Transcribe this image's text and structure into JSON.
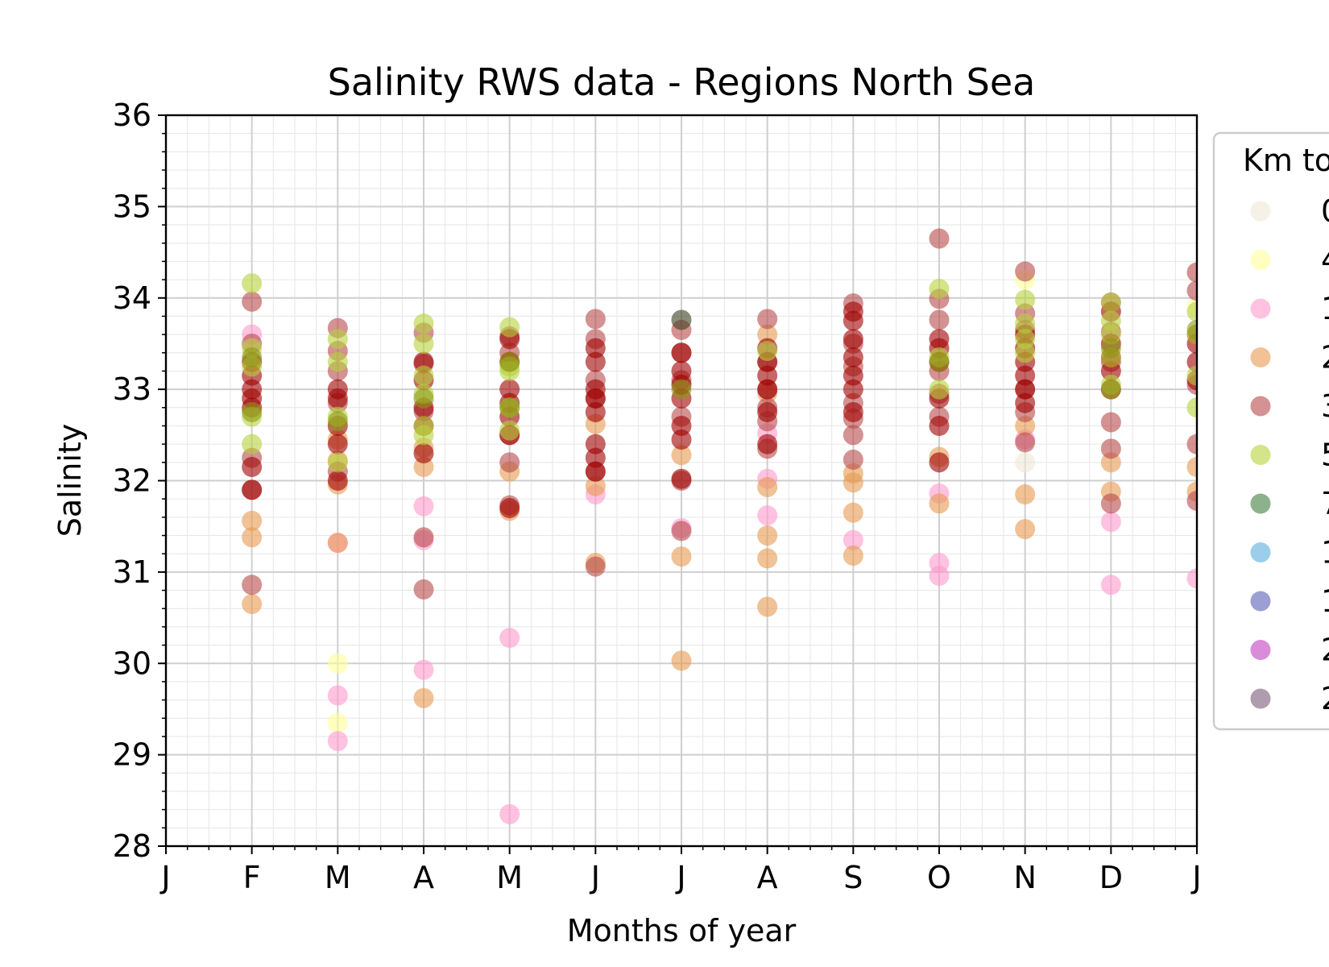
{
  "chart_data": {
    "type": "scatter",
    "title": "Salinity RWS data - Regions North Sea",
    "xlabel": "Months of year",
    "ylabel": "Salinity",
    "ylim": [
      28,
      36
    ],
    "yticks": [
      28,
      29,
      30,
      31,
      32,
      33,
      34,
      35,
      36
    ],
    "xlim": [
      0,
      12
    ],
    "xtick_labels": [
      "J",
      "F",
      "M",
      "A",
      "M",
      "J",
      "J",
      "A",
      "S",
      "O",
      "N",
      "D",
      "J"
    ],
    "grid": true,
    "legend": {
      "placement": "right, partially cut off",
      "title": "Km to",
      "entries": [
        {
          "label": "0",
          "color": "#eee8d5"
        },
        {
          "label": "4",
          "color": "#ffff99"
        },
        {
          "label": "1",
          "color": "#ff99cc"
        },
        {
          "label": "2",
          "color": "#e69a50"
        },
        {
          "label": "3",
          "color": "#b84a4a"
        },
        {
          "label": "5",
          "color": "#b5d23b"
        },
        {
          "label": "7",
          "color": "#3f7f3f"
        },
        {
          "label": "1",
          "color": "#5aaee0"
        },
        {
          "label": "1",
          "color": "#5a5fb5"
        },
        {
          "label": "2",
          "color": "#c040c0"
        },
        {
          "label": "2",
          "color": "#7a5a78"
        }
      ]
    },
    "series": [
      {
        "color": "#eee8d5",
        "points": [
          [
            10,
            32.2
          ]
        ]
      },
      {
        "color": "#ffff99",
        "points": [
          [
            2,
            30.0
          ],
          [
            2,
            29.35
          ],
          [
            10,
            34.2
          ],
          [
            12,
            33.9
          ]
        ]
      },
      {
        "color": "#ff99cc",
        "points": [
          [
            1,
            33.6
          ],
          [
            2,
            31.32
          ],
          [
            2,
            29.65
          ],
          [
            2,
            29.15
          ],
          [
            3,
            31.72
          ],
          [
            3,
            31.35
          ],
          [
            3,
            29.93
          ],
          [
            4,
            30.28
          ],
          [
            4,
            28.35
          ],
          [
            5,
            31.85
          ],
          [
            6,
            31.48
          ],
          [
            7,
            32.52
          ],
          [
            7,
            32.02
          ],
          [
            7,
            31.62
          ],
          [
            8,
            31.35
          ],
          [
            9,
            31.86
          ],
          [
            9,
            31.1
          ],
          [
            9,
            30.96
          ],
          [
            10,
            32.45
          ],
          [
            11,
            31.55
          ],
          [
            11,
            30.86
          ],
          [
            12,
            30.93
          ]
        ]
      },
      {
        "color": "#e69a50",
        "points": [
          [
            1,
            31.56
          ],
          [
            1,
            31.38
          ],
          [
            1,
            30.65
          ],
          [
            2,
            32.45
          ],
          [
            2,
            32.22
          ],
          [
            2,
            31.96
          ],
          [
            2,
            31.32
          ],
          [
            3,
            32.36
          ],
          [
            3,
            32.15
          ],
          [
            3,
            29.62
          ],
          [
            4,
            31.67
          ],
          [
            4,
            32.1
          ],
          [
            5,
            32.62
          ],
          [
            5,
            31.94
          ],
          [
            5,
            31.1
          ],
          [
            6,
            32.28
          ],
          [
            6,
            31.17
          ],
          [
            6,
            30.03
          ],
          [
            7,
            33.6
          ],
          [
            7,
            32.96
          ],
          [
            7,
            31.93
          ],
          [
            7,
            31.4
          ],
          [
            7,
            31.15
          ],
          [
            7,
            30.62
          ],
          [
            8,
            32.08
          ],
          [
            8,
            31.98
          ],
          [
            8,
            31.65
          ],
          [
            8,
            31.18
          ],
          [
            9,
            32.26
          ],
          [
            9,
            31.75
          ],
          [
            10,
            32.6
          ],
          [
            10,
            31.85
          ],
          [
            10,
            31.47
          ],
          [
            11,
            32.2
          ],
          [
            11,
            31.88
          ],
          [
            12,
            32.15
          ],
          [
            12,
            31.88
          ]
        ]
      },
      {
        "color": "#b84a4a",
        "points": [
          [
            1,
            33.96
          ],
          [
            1,
            33.5
          ],
          [
            1,
            32.25
          ],
          [
            1,
            31.9
          ],
          [
            1,
            30.86
          ],
          [
            2,
            33.67
          ],
          [
            2,
            33.42
          ],
          [
            2,
            33.2
          ],
          [
            2,
            32.85
          ],
          [
            2,
            32.1
          ],
          [
            3,
            33.62
          ],
          [
            3,
            33.28
          ],
          [
            3,
            32.76
          ],
          [
            3,
            31.38
          ],
          [
            3,
            30.81
          ],
          [
            4,
            33.58
          ],
          [
            4,
            33.4
          ],
          [
            4,
            32.5
          ],
          [
            4,
            32.2
          ],
          [
            4,
            31.73
          ],
          [
            5,
            33.77
          ],
          [
            5,
            33.55
          ],
          [
            5,
            33.1
          ],
          [
            5,
            32.9
          ],
          [
            5,
            32.1
          ],
          [
            5,
            31.06
          ],
          [
            6,
            33.65
          ],
          [
            6,
            33.4
          ],
          [
            6,
            33.1
          ],
          [
            6,
            32.7
          ],
          [
            6,
            32.0
          ],
          [
            6,
            31.45
          ],
          [
            7,
            33.77
          ],
          [
            7,
            33.3
          ],
          [
            7,
            33.0
          ],
          [
            7,
            32.8
          ],
          [
            7,
            32.65
          ],
          [
            7,
            32.35
          ],
          [
            8,
            33.94
          ],
          [
            8,
            33.5
          ],
          [
            8,
            33.25
          ],
          [
            8,
            32.85
          ],
          [
            8,
            32.5
          ],
          [
            8,
            32.23
          ],
          [
            8,
            32.68
          ],
          [
            9,
            34.65
          ],
          [
            9,
            33.99
          ],
          [
            9,
            33.76
          ],
          [
            9,
            33.2
          ],
          [
            9,
            32.95
          ],
          [
            9,
            32.7
          ],
          [
            10,
            34.29
          ],
          [
            10,
            33.83
          ],
          [
            10,
            33.65
          ],
          [
            10,
            33.0
          ],
          [
            10,
            32.75
          ],
          [
            10,
            32.42
          ],
          [
            11,
            33.95
          ],
          [
            11,
            33.63
          ],
          [
            11,
            33.3
          ],
          [
            11,
            32.64
          ],
          [
            11,
            32.35
          ],
          [
            11,
            31.75
          ],
          [
            12,
            34.28
          ],
          [
            12,
            34.08
          ],
          [
            12,
            33.6
          ],
          [
            12,
            33.05
          ],
          [
            12,
            32.4
          ],
          [
            12,
            31.78
          ]
        ]
      },
      {
        "color": "#a00000",
        "points": [
          [
            1,
            33.3
          ],
          [
            1,
            33.15
          ],
          [
            1,
            33.0
          ],
          [
            1,
            32.9
          ],
          [
            1,
            32.8
          ],
          [
            1,
            32.15
          ],
          [
            1,
            31.9
          ],
          [
            2,
            33.0
          ],
          [
            2,
            32.9
          ],
          [
            2,
            32.6
          ],
          [
            2,
            32.4
          ],
          [
            2,
            32.0
          ],
          [
            3,
            33.3
          ],
          [
            3,
            33.1
          ],
          [
            3,
            32.8
          ],
          [
            3,
            32.6
          ],
          [
            3,
            32.3
          ],
          [
            4,
            33.55
          ],
          [
            4,
            33.3
          ],
          [
            4,
            33.0
          ],
          [
            4,
            32.85
          ],
          [
            4,
            32.7
          ],
          [
            4,
            32.5
          ],
          [
            4,
            31.7
          ],
          [
            5,
            33.45
          ],
          [
            5,
            33.3
          ],
          [
            5,
            33.0
          ],
          [
            5,
            32.9
          ],
          [
            5,
            32.75
          ],
          [
            5,
            32.4
          ],
          [
            5,
            32.25
          ],
          [
            5,
            32.1
          ],
          [
            6,
            33.4
          ],
          [
            6,
            33.2
          ],
          [
            6,
            33.05
          ],
          [
            6,
            32.9
          ],
          [
            6,
            32.6
          ],
          [
            6,
            32.45
          ],
          [
            6,
            32.02
          ],
          [
            7,
            33.45
          ],
          [
            7,
            33.3
          ],
          [
            7,
            33.15
          ],
          [
            7,
            33.0
          ],
          [
            7,
            32.75
          ],
          [
            7,
            32.4
          ],
          [
            8,
            33.85
          ],
          [
            8,
            33.75
          ],
          [
            8,
            33.55
          ],
          [
            8,
            33.35
          ],
          [
            8,
            33.15
          ],
          [
            8,
            33.0
          ],
          [
            8,
            32.75
          ],
          [
            9,
            33.55
          ],
          [
            9,
            33.45
          ],
          [
            9,
            33.3
          ],
          [
            9,
            32.9
          ],
          [
            9,
            32.6
          ],
          [
            9,
            32.2
          ],
          [
            10,
            33.6
          ],
          [
            10,
            33.45
          ],
          [
            10,
            33.3
          ],
          [
            10,
            33.15
          ],
          [
            10,
            33.0
          ],
          [
            10,
            32.85
          ],
          [
            11,
            33.85
          ],
          [
            11,
            33.5
          ],
          [
            11,
            33.35
          ],
          [
            11,
            33.2
          ],
          [
            11,
            33.0
          ],
          [
            12,
            33.5
          ],
          [
            12,
            33.3
          ],
          [
            12,
            33.1
          ]
        ]
      },
      {
        "color": "#b5d23b",
        "points": [
          [
            1,
            34.16
          ],
          [
            1,
            33.45
          ],
          [
            1,
            33.25
          ],
          [
            1,
            32.7
          ],
          [
            1,
            32.4
          ],
          [
            2,
            33.55
          ],
          [
            2,
            33.3
          ],
          [
            2,
            32.7
          ],
          [
            2,
            32.2
          ],
          [
            3,
            33.72
          ],
          [
            3,
            33.5
          ],
          [
            3,
            33.15
          ],
          [
            3,
            32.95
          ],
          [
            3,
            32.6
          ],
          [
            3,
            32.5
          ],
          [
            4,
            33.68
          ],
          [
            4,
            33.25
          ],
          [
            4,
            33.2
          ],
          [
            4,
            32.8
          ],
          [
            4,
            32.55
          ],
          [
            7,
            33.42
          ],
          [
            9,
            34.1
          ],
          [
            9,
            33.35
          ],
          [
            9,
            33.0
          ],
          [
            10,
            33.98
          ],
          [
            10,
            33.72
          ],
          [
            10,
            33.55
          ],
          [
            10,
            33.4
          ],
          [
            11,
            33.95
          ],
          [
            11,
            33.75
          ],
          [
            11,
            33.6
          ],
          [
            11,
            33.35
          ],
          [
            11,
            33.05
          ],
          [
            12,
            33.85
          ],
          [
            12,
            33.6
          ],
          [
            12,
            33.15
          ],
          [
            12,
            32.8
          ]
        ]
      },
      {
        "color": "#8a9a12",
        "points": [
          [
            1,
            33.35
          ],
          [
            1,
            32.75
          ],
          [
            2,
            32.65
          ],
          [
            3,
            32.9
          ],
          [
            4,
            32.8
          ],
          [
            4,
            33.3
          ],
          [
            6,
            33.0
          ],
          [
            9,
            33.3
          ],
          [
            11,
            33.45
          ],
          [
            11,
            33.0
          ],
          [
            12,
            33.65
          ]
        ]
      },
      {
        "color": "#3a4020",
        "points": [
          [
            6,
            33.76
          ]
        ]
      }
    ]
  }
}
